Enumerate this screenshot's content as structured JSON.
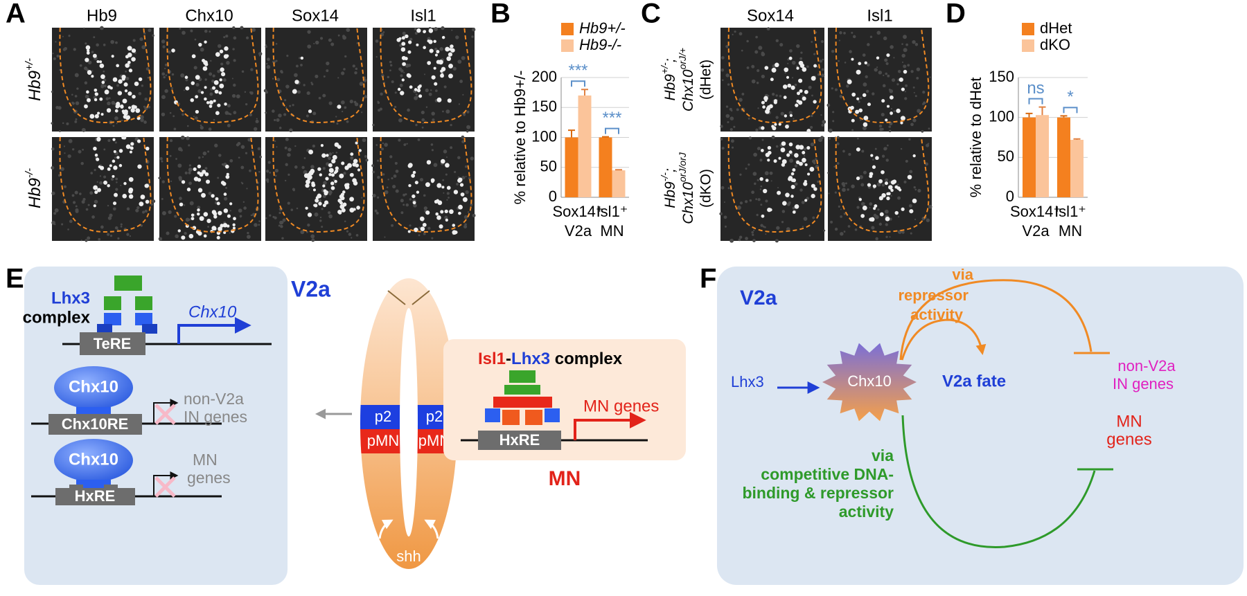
{
  "panel_labels": [
    "A",
    "B",
    "C",
    "D",
    "E",
    "F"
  ],
  "panel_a": {
    "columns": [
      "Hb9",
      "Chx10",
      "Sox14",
      "Isl1"
    ],
    "rows": [
      {
        "gene": "Hb9",
        "sup": "+/-"
      },
      {
        "gene": "Hb9",
        "sup": "-/-"
      }
    ]
  },
  "panel_c": {
    "columns": [
      "Sox14",
      "Isl1"
    ],
    "rows": [
      {
        "gene1": "Hb9",
        "sup1": "+/-",
        "gene2": "Chx10",
        "sup2": "orJ/+",
        "label": "(dHet)"
      },
      {
        "gene1": "Hb9",
        "sup1": "-/-",
        "gene2": "Chx10",
        "sup2": "orJ/orJ",
        "label": "(dKO)"
      }
    ]
  },
  "chart_data": [
    {
      "type": "bar",
      "ylabel": "% relative to Hb9+/-",
      "categories": [
        "Sox14⁺",
        "Isl1⁺"
      ],
      "category_sublabels": [
        "V2a",
        "MN"
      ],
      "series": [
        {
          "name": "Hb9+/-",
          "color": "#f4801f",
          "values": [
            100,
            100
          ],
          "errors": [
            12,
            1
          ]
        },
        {
          "name": "Hb9-/-",
          "color": "#fbc49a",
          "values": [
            170,
            45
          ],
          "errors": [
            10,
            1
          ]
        }
      ],
      "annotations": [
        "***",
        "***"
      ],
      "ylim": [
        0,
        200
      ],
      "yticks": [
        0,
        50,
        100,
        150,
        200
      ],
      "grid": true
    },
    {
      "type": "bar",
      "ylabel": "% relative to dHet",
      "categories": [
        "Sox14⁺",
        "Isl1⁺"
      ],
      "category_sublabels": [
        "V2a",
        "MN"
      ],
      "series": [
        {
          "name": "dHet",
          "color": "#f4801f",
          "values": [
            100,
            100
          ],
          "errors": [
            5,
            2
          ]
        },
        {
          "name": "dKO",
          "color": "#fbc49a",
          "values": [
            103,
            72
          ],
          "errors": [
            10,
            1
          ]
        }
      ],
      "annotations": [
        "ns",
        "*"
      ],
      "ylim": [
        0,
        150
      ],
      "yticks": [
        0,
        50,
        100,
        150
      ],
      "grid": true
    }
  ],
  "panel_e": {
    "lhx3_complex": [
      "Lhx3",
      "complex"
    ],
    "chx10_gene": "Chx10",
    "tere": "TeRE",
    "repressor_1": "Chx10",
    "chx10re": "Chx10RE",
    "non_v2a_genes": [
      "non-V2a",
      "IN genes"
    ],
    "repressor_2": "Chx10",
    "hxre": "HxRE",
    "mn_genes_repressed": [
      "MN",
      "genes"
    ],
    "v2a": "V2a",
    "domains": [
      "p2",
      "p2",
      "pMN",
      "pMN",
      "shh"
    ],
    "mn_complex": [
      "Isl1",
      "-",
      "Lhx3",
      " complex"
    ],
    "mn_genes": "MN genes",
    "mn_hxre": "HxRE",
    "mn": "MN"
  },
  "panel_f": {
    "v2a": "V2a",
    "via_repressor": [
      "via",
      "repressor",
      "activity"
    ],
    "non_v2a_genes": [
      "non-V2a",
      "IN genes"
    ],
    "lhx3": "Lhx3",
    "chx10": "Chx10",
    "v2a_fate": "V2a fate",
    "mn_genes": [
      "MN",
      "genes"
    ],
    "via_competitive": [
      "via",
      "competitive DNA-",
      "binding & repressor",
      "activity"
    ]
  }
}
